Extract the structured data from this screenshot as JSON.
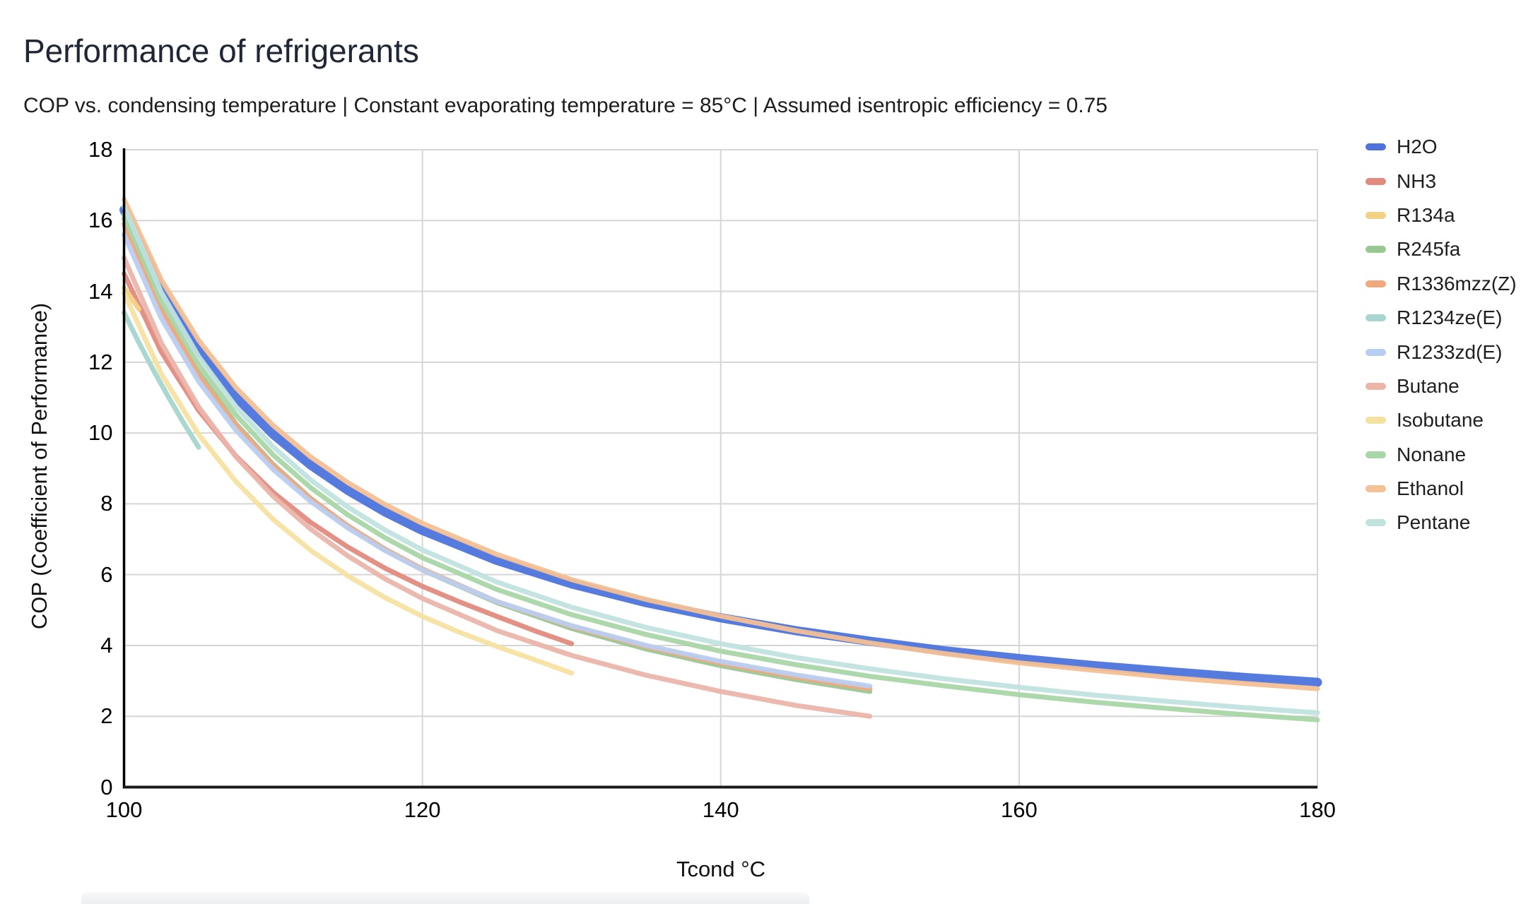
{
  "chart_data": {
    "type": "line",
    "title": "Performance of refrigerants",
    "subtitle": "COP vs. condensing temperature | Constant evaporating temperature = 85°C | Assumed isentropic efficiency = 0.75",
    "xlabel": "Tcond °C",
    "ylabel": "COP (Coefficient of Performance)",
    "xlim": [
      100,
      180
    ],
    "ylim": [
      0,
      18
    ],
    "x_ticks": [
      "100",
      "120",
      "140",
      "160",
      "180"
    ],
    "y_ticks": [
      "0",
      "2",
      "4",
      "6",
      "8",
      "10",
      "12",
      "14",
      "16",
      "18"
    ],
    "grid": true,
    "legend_position": "right",
    "grid_color": "#d6d6d6",
    "axis_color": "#1a1a1a",
    "series": [
      {
        "name": "H2O",
        "color": "#4c74dc",
        "line_width": 13,
        "points": [
          [
            100,
            16.3
          ],
          [
            102.5,
            14.04
          ],
          [
            105,
            12.34
          ],
          [
            107.5,
            11.02
          ],
          [
            110,
            9.96
          ],
          [
            112.5,
            9.1
          ],
          [
            115,
            8.38
          ],
          [
            117.5,
            7.77
          ],
          [
            120,
            7.25
          ],
          [
            125,
            6.4
          ],
          [
            130,
            5.74
          ],
          [
            135,
            5.21
          ],
          [
            140,
            4.78
          ],
          [
            145,
            4.42
          ],
          [
            150,
            4.12
          ],
          [
            155,
            3.85
          ],
          [
            160,
            3.63
          ],
          [
            165,
            3.43
          ],
          [
            170,
            3.26
          ],
          [
            175,
            3.1
          ],
          [
            180,
            2.96
          ]
        ]
      },
      {
        "name": "NH3",
        "color": "#e18a7e",
        "line_width": 7,
        "points": [
          [
            100,
            14.5
          ],
          [
            102.5,
            12.29
          ],
          [
            105,
            10.64
          ],
          [
            107.5,
            9.35
          ],
          [
            110,
            8.32
          ],
          [
            112.5,
            7.48
          ],
          [
            115,
            6.78
          ],
          [
            117.5,
            6.18
          ],
          [
            120,
            5.67
          ],
          [
            122.5,
            5.23
          ],
          [
            125,
            4.82
          ],
          [
            127.5,
            4.42
          ],
          [
            130,
            4.05
          ]
        ]
      },
      {
        "name": "R134a",
        "color": "#f3d184",
        "line_width": 7,
        "points": [
          [
            100,
            14.1
          ],
          [
            100.5,
            13.8
          ],
          [
            101,
            13.5
          ]
        ]
      },
      {
        "name": "R245fa",
        "color": "#99c794",
        "line_width": 7,
        "points": [
          [
            100,
            16.05
          ],
          [
            102.5,
            13.57
          ],
          [
            105,
            11.71
          ],
          [
            107.5,
            10.26
          ],
          [
            110,
            9.11
          ],
          [
            112.5,
            8.16
          ],
          [
            115,
            7.37
          ],
          [
            117.5,
            6.7
          ],
          [
            120,
            6.13
          ],
          [
            125,
            5.21
          ],
          [
            130,
            4.48
          ],
          [
            135,
            3.9
          ],
          [
            140,
            3.43
          ],
          [
            145,
            3.04
          ],
          [
            150,
            2.7
          ]
        ]
      },
      {
        "name": "R1336mzz(Z)",
        "color": "#f2a87d",
        "line_width": 7,
        "points": [
          [
            100,
            15.9
          ],
          [
            102.5,
            13.47
          ],
          [
            105,
            11.64
          ],
          [
            107.5,
            10.22
          ],
          [
            110,
            9.08
          ],
          [
            112.5,
            8.15
          ],
          [
            115,
            7.38
          ],
          [
            117.5,
            6.72
          ],
          [
            120,
            6.16
          ],
          [
            125,
            5.24
          ],
          [
            130,
            4.54
          ],
          [
            135,
            3.97
          ],
          [
            140,
            3.5
          ],
          [
            145,
            3.11
          ],
          [
            150,
            2.78
          ]
        ]
      },
      {
        "name": "R1234ze(E)",
        "color": "#a7d5cf",
        "line_width": 7,
        "points": [
          [
            100,
            13.4
          ],
          [
            101,
            12.55
          ],
          [
            102,
            11.75
          ],
          [
            103,
            11.0
          ],
          [
            104,
            10.28
          ],
          [
            105,
            9.6
          ]
        ]
      },
      {
        "name": "R1233zd(E)",
        "color": "#b9cdf0",
        "line_width": 7,
        "points": [
          [
            100,
            15.6
          ],
          [
            102.5,
            13.24
          ],
          [
            105,
            11.46
          ],
          [
            107.5,
            10.08
          ],
          [
            110,
            8.97
          ],
          [
            112.5,
            8.07
          ],
          [
            115,
            7.32
          ],
          [
            117.5,
            6.68
          ],
          [
            120,
            6.13
          ],
          [
            125,
            5.24
          ],
          [
            130,
            4.56
          ],
          [
            135,
            4.0
          ],
          [
            140,
            3.55
          ],
          [
            145,
            3.17
          ],
          [
            150,
            2.85
          ]
        ]
      },
      {
        "name": "Butane",
        "color": "#ebb5aa",
        "line_width": 7,
        "points": [
          [
            100,
            14.95
          ],
          [
            102.5,
            12.54
          ],
          [
            105,
            10.74
          ],
          [
            107.5,
            9.33
          ],
          [
            110,
            8.21
          ],
          [
            112.5,
            7.29
          ],
          [
            115,
            6.53
          ],
          [
            117.5,
            5.88
          ],
          [
            120,
            5.33
          ],
          [
            125,
            4.42
          ],
          [
            130,
            3.72
          ],
          [
            135,
            3.16
          ],
          [
            140,
            2.7
          ],
          [
            145,
            2.31
          ],
          [
            150,
            2.0
          ]
        ]
      },
      {
        "name": "Isobutane",
        "color": "#f6e2a0",
        "line_width": 7,
        "points": [
          [
            100,
            13.95
          ],
          [
            102.5,
            11.67
          ],
          [
            105,
            9.96
          ],
          [
            107.5,
            8.63
          ],
          [
            110,
            7.56
          ],
          [
            112.5,
            6.69
          ],
          [
            115,
            5.97
          ],
          [
            117.5,
            5.35
          ],
          [
            120,
            4.82
          ],
          [
            122.5,
            4.37
          ],
          [
            125,
            3.97
          ],
          [
            127.5,
            3.6
          ],
          [
            130,
            3.22
          ]
        ]
      },
      {
        "name": "Nonane",
        "color": "#a9d6a6",
        "line_width": 7,
        "points": [
          [
            100,
            16.15
          ],
          [
            102.5,
            13.73
          ],
          [
            105,
            11.92
          ],
          [
            107.5,
            10.51
          ],
          [
            110,
            9.38
          ],
          [
            112.5,
            8.46
          ],
          [
            115,
            7.69
          ],
          [
            117.5,
            7.04
          ],
          [
            120,
            6.48
          ],
          [
            125,
            5.58
          ],
          [
            130,
            4.87
          ],
          [
            135,
            4.31
          ],
          [
            140,
            3.84
          ],
          [
            145,
            3.46
          ],
          [
            150,
            3.13
          ],
          [
            155,
            2.86
          ],
          [
            160,
            2.61
          ],
          [
            165,
            2.4
          ],
          [
            170,
            2.22
          ],
          [
            175,
            2.05
          ],
          [
            180,
            1.9
          ]
        ]
      },
      {
        "name": "Ethanol",
        "color": "#f4c094",
        "line_width": 7,
        "points": [
          [
            100,
            16.6
          ],
          [
            102.5,
            14.32
          ],
          [
            105,
            12.62
          ],
          [
            107.5,
            11.28
          ],
          [
            110,
            10.21
          ],
          [
            112.5,
            9.33
          ],
          [
            115,
            8.6
          ],
          [
            117.5,
            7.98
          ],
          [
            120,
            7.45
          ],
          [
            125,
            6.57
          ],
          [
            130,
            5.86
          ],
          [
            135,
            5.3
          ],
          [
            140,
            4.83
          ],
          [
            145,
            4.42
          ],
          [
            150,
            4.07
          ],
          [
            155,
            3.77
          ],
          [
            160,
            3.51
          ],
          [
            165,
            3.3
          ],
          [
            170,
            3.1
          ],
          [
            175,
            2.93
          ],
          [
            180,
            2.78
          ]
        ]
      },
      {
        "name": "Pentane",
        "color": "#c0e3de",
        "line_width": 7,
        "points": [
          [
            100,
            16.4
          ],
          [
            102.5,
            13.97
          ],
          [
            105,
            12.16
          ],
          [
            107.5,
            10.74
          ],
          [
            110,
            9.61
          ],
          [
            112.5,
            8.68
          ],
          [
            115,
            7.91
          ],
          [
            117.5,
            7.26
          ],
          [
            120,
            6.7
          ],
          [
            125,
            5.79
          ],
          [
            130,
            5.08
          ],
          [
            135,
            4.51
          ],
          [
            140,
            4.05
          ],
          [
            145,
            3.66
          ],
          [
            150,
            3.34
          ],
          [
            155,
            3.06
          ],
          [
            160,
            2.82
          ],
          [
            165,
            2.6
          ],
          [
            170,
            2.42
          ],
          [
            175,
            2.25
          ],
          [
            180,
            2.1
          ]
        ]
      }
    ]
  }
}
